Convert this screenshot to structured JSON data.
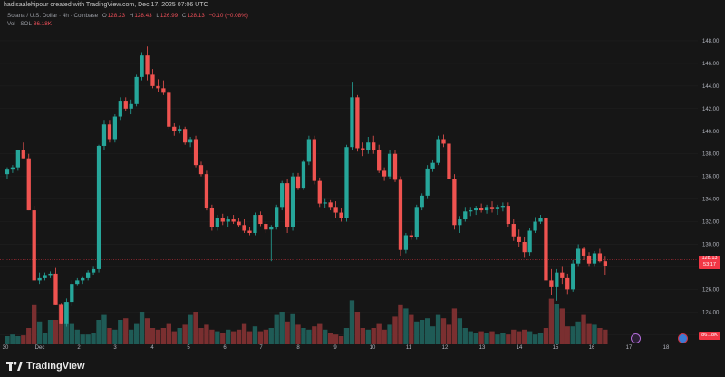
{
  "header": {
    "credit": "hadisaalehipour created with TradingView.com, Dec 17, 2025 07:06 UTC",
    "symbol": "Solana / U.S. Dollar · 4h · Coinbase",
    "o_label": "O",
    "o_value": "128.23",
    "h_label": "H",
    "h_value": "128.43",
    "l_label": "L",
    "l_value": "126.99",
    "c_label": "C",
    "c_value": "128.13",
    "change": "−0.10 (−0.08%)",
    "vol_label": "Vol · SOL",
    "vol_value": "86.18K"
  },
  "price_axis": {
    "ticks": [
      "148.00",
      "146.00",
      "144.00",
      "142.00",
      "140.00",
      "138.00",
      "136.00",
      "134.00",
      "132.00",
      "130.00",
      "128.00",
      "126.00",
      "124.00",
      "122.00"
    ],
    "last_price": "128.13",
    "countdown": "53:17",
    "volume_tag": "86.18K"
  },
  "time_axis": {
    "ticks": [
      "30",
      "Dec",
      "2",
      "3",
      "4",
      "5",
      "6",
      "7",
      "8",
      "9",
      "10",
      "11",
      "12",
      "13",
      "14",
      "15",
      "16",
      "17",
      "18"
    ]
  },
  "footer": {
    "brand": "TradingView"
  },
  "colors": {
    "up": "#26a69a",
    "down": "#ef5350",
    "background": "#161616",
    "grid": "#222222"
  },
  "chart_data": {
    "type": "candlestick",
    "ylim": [
      121.3,
      149.2
    ],
    "candles": [
      {
        "o": 136.2,
        "h": 136.8,
        "l": 135.8,
        "c": 136.6
      },
      {
        "o": 136.6,
        "h": 137.0,
        "l": 136.3,
        "c": 136.8
      },
      {
        "o": 136.8,
        "h": 138.2,
        "l": 136.5,
        "c": 138.3
      },
      {
        "o": 138.3,
        "h": 139.0,
        "l": 137.6,
        "c": 137.6
      },
      {
        "o": 137.6,
        "h": 138.0,
        "l": 133.0,
        "c": 133.0
      },
      {
        "o": 133.0,
        "h": 133.4,
        "l": 126.8,
        "c": 126.8
      },
      {
        "o": 126.8,
        "h": 127.5,
        "l": 126.5,
        "c": 127.0
      },
      {
        "o": 127.0,
        "h": 127.5,
        "l": 126.8,
        "c": 127.2
      },
      {
        "o": 127.2,
        "h": 127.6,
        "l": 127.0,
        "c": 127.4
      },
      {
        "o": 127.4,
        "h": 127.9,
        "l": 124.6,
        "c": 124.6
      },
      {
        "o": 124.6,
        "h": 124.8,
        "l": 122.9,
        "c": 123.0
      },
      {
        "o": 123.0,
        "h": 125.2,
        "l": 122.7,
        "c": 124.9
      },
      {
        "o": 124.9,
        "h": 126.8,
        "l": 124.5,
        "c": 126.5
      },
      {
        "o": 126.5,
        "h": 127.0,
        "l": 126.3,
        "c": 126.8
      },
      {
        "o": 126.8,
        "h": 127.1,
        "l": 126.5,
        "c": 127.0
      },
      {
        "o": 127.0,
        "h": 127.7,
        "l": 126.8,
        "c": 127.5
      },
      {
        "o": 127.5,
        "h": 128.0,
        "l": 127.3,
        "c": 127.8
      },
      {
        "o": 127.8,
        "h": 138.8,
        "l": 127.5,
        "c": 138.7
      },
      {
        "o": 138.7,
        "h": 141.0,
        "l": 138.3,
        "c": 140.6
      },
      {
        "o": 140.6,
        "h": 141.0,
        "l": 139.0,
        "c": 139.3
      },
      {
        "o": 139.3,
        "h": 141.5,
        "l": 139.0,
        "c": 141.3
      },
      {
        "o": 141.3,
        "h": 143.0,
        "l": 141.0,
        "c": 142.7
      },
      {
        "o": 142.7,
        "h": 143.0,
        "l": 141.8,
        "c": 142.0
      },
      {
        "o": 142.0,
        "h": 142.8,
        "l": 141.5,
        "c": 142.4
      },
      {
        "o": 142.4,
        "h": 145.0,
        "l": 142.2,
        "c": 144.8
      },
      {
        "o": 144.8,
        "h": 147.0,
        "l": 144.5,
        "c": 146.7
      },
      {
        "o": 146.7,
        "h": 147.5,
        "l": 144.5,
        "c": 145.0
      },
      {
        "o": 145.0,
        "h": 145.5,
        "l": 143.8,
        "c": 144.0
      },
      {
        "o": 144.0,
        "h": 144.6,
        "l": 143.5,
        "c": 143.8
      },
      {
        "o": 143.8,
        "h": 144.5,
        "l": 143.2,
        "c": 143.4
      },
      {
        "o": 143.4,
        "h": 143.6,
        "l": 140.2,
        "c": 140.4
      },
      {
        "o": 140.4,
        "h": 140.7,
        "l": 139.6,
        "c": 140.0
      },
      {
        "o": 140.0,
        "h": 140.5,
        "l": 139.8,
        "c": 140.2
      },
      {
        "o": 140.2,
        "h": 140.4,
        "l": 138.8,
        "c": 139.0
      },
      {
        "o": 139.0,
        "h": 139.5,
        "l": 138.6,
        "c": 139.3
      },
      {
        "o": 139.3,
        "h": 139.6,
        "l": 136.8,
        "c": 137.0
      },
      {
        "o": 137.0,
        "h": 137.3,
        "l": 136.0,
        "c": 136.2
      },
      {
        "o": 136.2,
        "h": 136.5,
        "l": 133.0,
        "c": 133.2
      },
      {
        "o": 133.2,
        "h": 133.5,
        "l": 131.2,
        "c": 131.5
      },
      {
        "o": 131.5,
        "h": 132.6,
        "l": 131.2,
        "c": 132.3
      },
      {
        "o": 132.3,
        "h": 132.7,
        "l": 131.7,
        "c": 132.0
      },
      {
        "o": 132.0,
        "h": 132.5,
        "l": 131.5,
        "c": 132.2
      },
      {
        "o": 132.2,
        "h": 132.6,
        "l": 131.8,
        "c": 132.0
      },
      {
        "o": 132.0,
        "h": 132.3,
        "l": 131.5,
        "c": 131.7
      },
      {
        "o": 131.7,
        "h": 132.2,
        "l": 131.0,
        "c": 131.2
      },
      {
        "o": 131.2,
        "h": 131.5,
        "l": 130.8,
        "c": 131.0
      },
      {
        "o": 131.0,
        "h": 132.8,
        "l": 130.8,
        "c": 132.6
      },
      {
        "o": 132.6,
        "h": 132.9,
        "l": 131.6,
        "c": 131.8
      },
      {
        "o": 131.8,
        "h": 132.0,
        "l": 131.0,
        "c": 131.3
      },
      {
        "o": 131.3,
        "h": 131.7,
        "l": 128.5,
        "c": 131.5
      },
      {
        "o": 131.5,
        "h": 133.5,
        "l": 131.3,
        "c": 133.3
      },
      {
        "o": 133.3,
        "h": 135.6,
        "l": 133.0,
        "c": 135.4
      },
      {
        "o": 135.4,
        "h": 135.8,
        "l": 131.0,
        "c": 131.5
      },
      {
        "o": 131.5,
        "h": 136.3,
        "l": 131.2,
        "c": 136.0
      },
      {
        "o": 136.0,
        "h": 136.3,
        "l": 134.8,
        "c": 135.0
      },
      {
        "o": 135.0,
        "h": 137.5,
        "l": 134.8,
        "c": 137.3
      },
      {
        "o": 137.3,
        "h": 139.6,
        "l": 137.0,
        "c": 139.3
      },
      {
        "o": 139.3,
        "h": 139.6,
        "l": 135.3,
        "c": 135.6
      },
      {
        "o": 135.6,
        "h": 135.9,
        "l": 133.3,
        "c": 133.6
      },
      {
        "o": 133.6,
        "h": 134.0,
        "l": 133.2,
        "c": 133.7
      },
      {
        "o": 133.7,
        "h": 133.9,
        "l": 133.0,
        "c": 133.3
      },
      {
        "o": 133.3,
        "h": 133.8,
        "l": 132.3,
        "c": 132.8
      },
      {
        "o": 132.8,
        "h": 133.2,
        "l": 132.0,
        "c": 132.3
      },
      {
        "o": 132.3,
        "h": 138.8,
        "l": 132.0,
        "c": 138.6
      },
      {
        "o": 138.6,
        "h": 144.3,
        "l": 138.3,
        "c": 143.0
      },
      {
        "o": 143.0,
        "h": 143.2,
        "l": 138.2,
        "c": 138.5
      },
      {
        "o": 138.5,
        "h": 139.0,
        "l": 137.8,
        "c": 138.3
      },
      {
        "o": 138.3,
        "h": 139.5,
        "l": 138.0,
        "c": 139.0
      },
      {
        "o": 139.0,
        "h": 139.6,
        "l": 138.0,
        "c": 138.3
      },
      {
        "o": 138.3,
        "h": 138.8,
        "l": 136.3,
        "c": 136.5
      },
      {
        "o": 136.5,
        "h": 136.8,
        "l": 135.6,
        "c": 136.0
      },
      {
        "o": 136.0,
        "h": 138.3,
        "l": 135.8,
        "c": 138.0
      },
      {
        "o": 138.0,
        "h": 138.3,
        "l": 135.5,
        "c": 135.7
      },
      {
        "o": 135.7,
        "h": 136.0,
        "l": 129.0,
        "c": 129.5
      },
      {
        "o": 129.5,
        "h": 131.0,
        "l": 129.2,
        "c": 130.8
      },
      {
        "o": 130.8,
        "h": 131.2,
        "l": 130.4,
        "c": 130.6
      },
      {
        "o": 130.6,
        "h": 133.5,
        "l": 130.4,
        "c": 133.3
      },
      {
        "o": 133.3,
        "h": 134.5,
        "l": 133.0,
        "c": 134.3
      },
      {
        "o": 134.3,
        "h": 137.0,
        "l": 134.0,
        "c": 136.7
      },
      {
        "o": 136.7,
        "h": 137.5,
        "l": 136.4,
        "c": 137.2
      },
      {
        "o": 137.2,
        "h": 139.6,
        "l": 137.0,
        "c": 139.3
      },
      {
        "o": 139.3,
        "h": 139.7,
        "l": 138.6,
        "c": 138.9
      },
      {
        "o": 138.9,
        "h": 139.3,
        "l": 135.5,
        "c": 135.8
      },
      {
        "o": 135.8,
        "h": 136.2,
        "l": 131.3,
        "c": 131.7
      },
      {
        "o": 131.7,
        "h": 132.5,
        "l": 131.0,
        "c": 132.2
      },
      {
        "o": 132.2,
        "h": 133.3,
        "l": 132.0,
        "c": 132.9
      },
      {
        "o": 132.9,
        "h": 133.3,
        "l": 132.5,
        "c": 133.0
      },
      {
        "o": 133.0,
        "h": 133.4,
        "l": 132.6,
        "c": 133.2
      },
      {
        "o": 133.2,
        "h": 133.6,
        "l": 132.8,
        "c": 133.0
      },
      {
        "o": 133.0,
        "h": 133.5,
        "l": 132.7,
        "c": 133.3
      },
      {
        "o": 133.3,
        "h": 133.8,
        "l": 132.8,
        "c": 133.1
      },
      {
        "o": 133.1,
        "h": 133.5,
        "l": 132.6,
        "c": 133.3
      },
      {
        "o": 133.3,
        "h": 133.7,
        "l": 132.9,
        "c": 133.4
      },
      {
        "o": 133.4,
        "h": 133.7,
        "l": 131.5,
        "c": 131.8
      },
      {
        "o": 131.8,
        "h": 132.2,
        "l": 130.3,
        "c": 130.7
      },
      {
        "o": 130.7,
        "h": 131.3,
        "l": 129.8,
        "c": 130.2
      },
      {
        "o": 130.2,
        "h": 130.6,
        "l": 128.8,
        "c": 129.3
      },
      {
        "o": 129.3,
        "h": 131.4,
        "l": 129.0,
        "c": 131.2
      },
      {
        "o": 131.2,
        "h": 132.4,
        "l": 131.0,
        "c": 132.0
      },
      {
        "o": 132.0,
        "h": 132.6,
        "l": 131.8,
        "c": 132.3
      },
      {
        "o": 132.3,
        "h": 135.3,
        "l": 124.6,
        "c": 126.8
      },
      {
        "o": 126.8,
        "h": 127.8,
        "l": 125.5,
        "c": 126.2
      },
      {
        "o": 126.2,
        "h": 127.8,
        "l": 125.0,
        "c": 127.5
      },
      {
        "o": 127.5,
        "h": 128.0,
        "l": 126.5,
        "c": 127.0
      },
      {
        "o": 127.0,
        "h": 127.4,
        "l": 125.6,
        "c": 126.0
      },
      {
        "o": 126.0,
        "h": 128.6,
        "l": 125.8,
        "c": 128.3
      },
      {
        "o": 128.3,
        "h": 130.0,
        "l": 128.0,
        "c": 129.6
      },
      {
        "o": 129.6,
        "h": 129.8,
        "l": 128.6,
        "c": 129.0
      },
      {
        "o": 129.0,
        "h": 129.3,
        "l": 128.0,
        "c": 128.3
      },
      {
        "o": 128.3,
        "h": 129.4,
        "l": 128.0,
        "c": 129.2
      },
      {
        "o": 129.2,
        "h": 129.6,
        "l": 128.4,
        "c": 128.5
      },
      {
        "o": 128.5,
        "h": 128.9,
        "l": 127.3,
        "c": 128.1
      }
    ],
    "volume": [
      0.5,
      0.6,
      0.5,
      0.55,
      1.0,
      2.4,
      1.4,
      0.7,
      1.5,
      1.5,
      2.5,
      2.6,
      1.3,
      0.9,
      0.6,
      0.6,
      0.7,
      1.5,
      1.8,
      1.0,
      0.9,
      1.5,
      1.6,
      0.9,
      1.3,
      2.0,
      1.6,
      1.0,
      0.9,
      1.0,
      1.3,
      0.8,
      1.0,
      1.2,
      1.8,
      2.0,
      1.0,
      1.2,
      0.9,
      0.8,
      0.7,
      0.9,
      0.8,
      0.9,
      1.3,
      0.8,
      1.1,
      0.8,
      0.9,
      1.0,
      1.8,
      2.0,
      1.4,
      1.9,
      1.2,
      1.0,
      0.9,
      1.1,
      1.3,
      0.9,
      0.7,
      0.6,
      0.5,
      1.0,
      2.7,
      2.0,
      1.0,
      0.9,
      1.0,
      1.3,
      0.9,
      1.2,
      1.7,
      2.4,
      2.2,
      1.8,
      1.4,
      1.5,
      1.6,
      1.1,
      1.8,
      1.6,
      1.2,
      2.2,
      1.6,
      1.0,
      0.8,
      0.7,
      0.8,
      0.7,
      0.8,
      0.6,
      0.7,
      0.6,
      0.9,
      0.8,
      0.9,
      0.8,
      0.6,
      0.7,
      1.0,
      2.8,
      2.5,
      2.2,
      1.1,
      1.1,
      1.4,
      1.8,
      1.3,
      1.2,
      1.0,
      0.9,
      0.7
    ],
    "volume_scale": [
      0,
      5.0
    ]
  }
}
